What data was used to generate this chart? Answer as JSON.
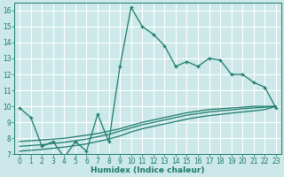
{
  "xlabel": "Humidex (Indice chaleur)",
  "bg_color": "#cce8e8",
  "grid_color": "#ffffff",
  "line_color": "#1a7a6a",
  "xlim": [
    -0.5,
    23.5
  ],
  "ylim": [
    7,
    16.5
  ],
  "xticks": [
    0,
    1,
    2,
    3,
    4,
    5,
    6,
    7,
    8,
    9,
    10,
    11,
    12,
    13,
    14,
    15,
    16,
    17,
    18,
    19,
    20,
    21,
    22,
    23
  ],
  "yticks": [
    7,
    8,
    9,
    10,
    11,
    12,
    13,
    14,
    15,
    16
  ],
  "line1_x": [
    0,
    1,
    2,
    3,
    4,
    5,
    6,
    7,
    8,
    9,
    10,
    11,
    12,
    13,
    14,
    15,
    16,
    17,
    18,
    19,
    20,
    21,
    22,
    23
  ],
  "line1_y": [
    9.9,
    9.3,
    7.5,
    7.8,
    6.8,
    7.8,
    7.2,
    9.5,
    7.8,
    12.5,
    16.2,
    15.0,
    14.5,
    13.8,
    12.5,
    12.8,
    12.5,
    13.0,
    12.9,
    12.0,
    12.0,
    11.5,
    11.2,
    9.9
  ],
  "line2_x": [
    0,
    23
  ],
  "line2_y": [
    7.8,
    10.0
  ],
  "line3_x": [
    0,
    23
  ],
  "line3_y": [
    7.5,
    10.0
  ],
  "line4_x": [
    0,
    23
  ],
  "line4_y": [
    7.2,
    10.0
  ],
  "line2_full_x": [
    0,
    1,
    2,
    3,
    4,
    5,
    6,
    7,
    8,
    9,
    10,
    11,
    12,
    13,
    14,
    15,
    16,
    17,
    18,
    19,
    20,
    21,
    22,
    23
  ],
  "line2_full_y": [
    7.8,
    7.85,
    7.9,
    7.95,
    8.0,
    8.1,
    8.2,
    8.3,
    8.45,
    8.6,
    8.8,
    9.0,
    9.15,
    9.3,
    9.45,
    9.6,
    9.7,
    9.8,
    9.85,
    9.9,
    9.95,
    10.0,
    10.0,
    10.0
  ],
  "line3_full_y": [
    7.5,
    7.55,
    7.6,
    7.68,
    7.75,
    7.85,
    7.95,
    8.1,
    8.25,
    8.45,
    8.65,
    8.85,
    9.0,
    9.15,
    9.3,
    9.45,
    9.55,
    9.65,
    9.72,
    9.78,
    9.85,
    9.9,
    9.95,
    10.0
  ],
  "line4_full_y": [
    7.2,
    7.25,
    7.3,
    7.38,
    7.45,
    7.55,
    7.65,
    7.8,
    7.95,
    8.15,
    8.4,
    8.6,
    8.75,
    8.9,
    9.05,
    9.2,
    9.32,
    9.42,
    9.5,
    9.58,
    9.65,
    9.72,
    9.8,
    10.0
  ]
}
